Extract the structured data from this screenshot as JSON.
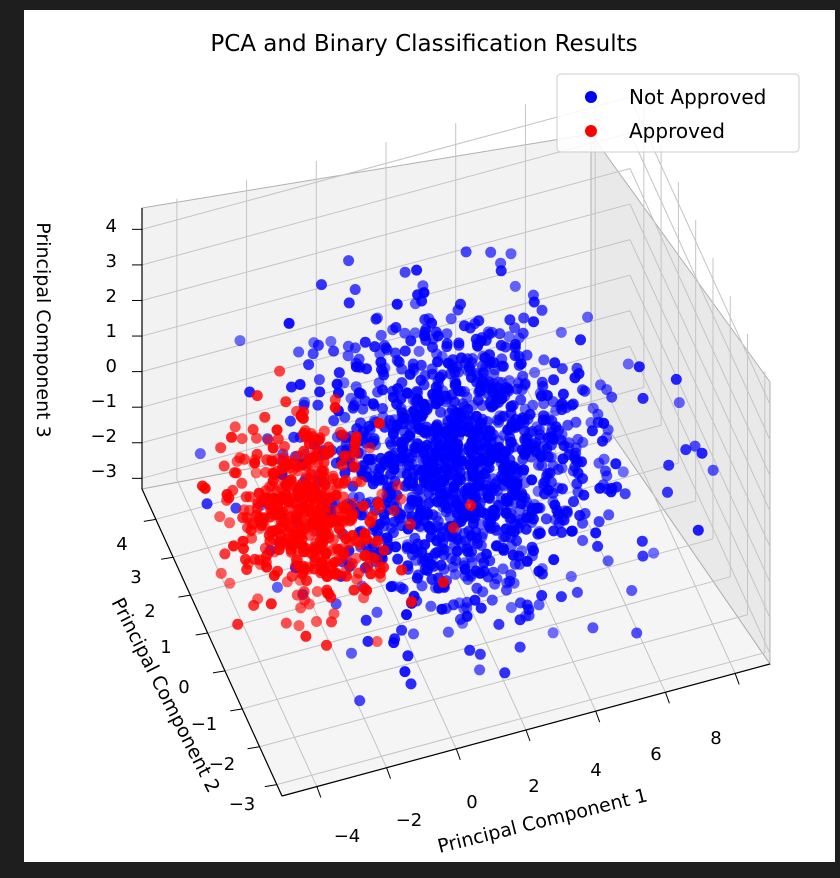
{
  "chart_data": {
    "type": "scatter",
    "title": "PCA and Binary Classification Results",
    "xlabel": "Principal Component 1",
    "ylabel": "Principal Component 2",
    "zlabel": "Principal Component 3",
    "x_ticks": [
      "−4",
      "−2",
      "0",
      "2",
      "4",
      "6",
      "8"
    ],
    "y_ticks": [
      "4",
      "3",
      "2",
      "1",
      "0",
      "−1",
      "−2",
      "−3"
    ],
    "z_ticks": [
      "4",
      "3",
      "2",
      "1",
      "0",
      "−1",
      "−2",
      "−3"
    ],
    "xlim": [
      -5,
      9
    ],
    "ylim": [
      -3.3,
      4.8
    ],
    "zlim": [
      -3.3,
      4.6
    ],
    "grid": true,
    "projection": "3d",
    "legend_position": "top-right",
    "series": [
      {
        "name": "Not Approved",
        "color": "#0000ff",
        "approx_points": 1400,
        "center": [
          1.8,
          0.3,
          0.4
        ],
        "spread": [
          2.0,
          1.5,
          1.2
        ]
      },
      {
        "name": "Approved",
        "color": "#ff0000",
        "approx_points": 500,
        "center": [
          -1.9,
          1.5,
          -1.3
        ],
        "spread": [
          1.0,
          0.9,
          0.8
        ]
      }
    ]
  }
}
